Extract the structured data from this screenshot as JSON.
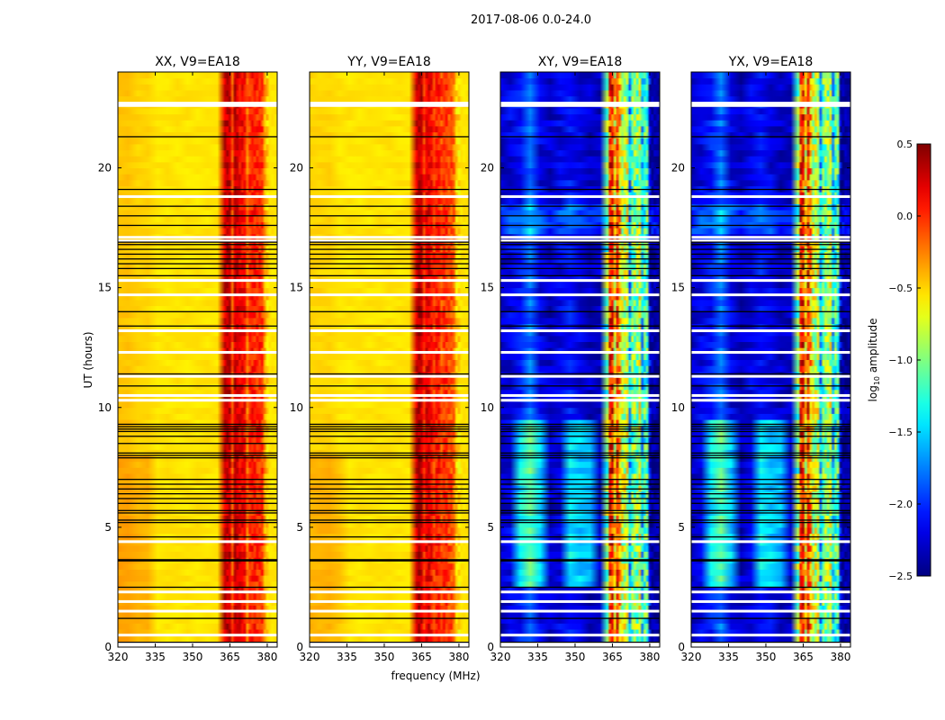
{
  "chart_data": {
    "type": "heatmap",
    "title": "2017-08-06 0.0-24.0",
    "ylabel": "UT (hours)",
    "xlabel": "frequency (MHz)",
    "xlim": [
      320,
      384
    ],
    "ylim": [
      0,
      24
    ],
    "xticks": [
      320,
      335,
      350,
      365,
      380
    ],
    "xtick_labels": [
      "320",
      "335",
      "350",
      "365",
      "380"
    ],
    "yticks": [
      0,
      5,
      10,
      15,
      20
    ],
    "ytick_labels": [
      "0",
      "5",
      "10",
      "15",
      "20"
    ],
    "colorbar": {
      "label": "log10 amplitude",
      "label_main": "log",
      "label_sub": "10",
      "label_rest": " amplitude",
      "colormap": "jet",
      "range": [
        -2.5,
        0.5
      ],
      "ticks": [
        0.5,
        0.0,
        -0.5,
        -1.0,
        -1.5,
        -2.0,
        -2.5
      ],
      "tick_labels": [
        "0.5",
        "0.0",
        "−0.5",
        "−1.0",
        "−1.5",
        "−2.0",
        "−2.5"
      ]
    },
    "freq_bins_mhz": [
      320,
      324,
      328,
      332,
      336,
      340,
      344,
      348,
      352,
      356,
      360,
      363,
      364,
      365,
      366,
      367,
      368,
      369,
      370,
      371,
      372,
      373,
      374,
      375,
      376,
      377,
      378,
      379,
      380,
      381,
      382,
      384
    ],
    "panels": [
      {
        "title": "XX, V9=EA18",
        "profile": [
          -0.45,
          -0.45,
          -0.5,
          -0.5,
          -0.55,
          -0.55,
          -0.55,
          -0.55,
          -0.55,
          -0.55,
          -0.55,
          0.25,
          0.3,
          0.3,
          -0.1,
          0.3,
          0.25,
          0.15,
          0.15,
          0.1,
          -0.2,
          0.0,
          0.05,
          0.05,
          0.0,
          0.0,
          -0.05,
          -0.35,
          -0.5,
          -0.55,
          -0.55,
          -0.55
        ]
      },
      {
        "title": "YY, V9=EA18",
        "profile": [
          -0.5,
          -0.5,
          -0.5,
          -0.55,
          -0.55,
          -0.55,
          -0.55,
          -0.55,
          -0.55,
          -0.55,
          -0.55,
          0.25,
          0.35,
          0.3,
          0.0,
          0.2,
          0.2,
          0.1,
          -0.05,
          0.05,
          0.05,
          -0.1,
          0.0,
          0.0,
          -0.1,
          -0.1,
          -0.2,
          -0.5,
          -0.55,
          -0.55,
          -0.55,
          -0.55
        ]
      },
      {
        "title": "XY, V9=EA18",
        "profile": [
          -2.3,
          -2.2,
          -2.1,
          -1.8,
          -2.2,
          -2.3,
          -2.2,
          -2.1,
          -2.2,
          -2.3,
          -2.3,
          -1.0,
          0.0,
          0.05,
          -0.6,
          0.0,
          -0.4,
          -0.8,
          -0.8,
          -0.8,
          -1.6,
          -1.1,
          -1.0,
          -1.0,
          -0.8,
          -1.5,
          -1.2,
          -1.2,
          -2.3,
          -2.4,
          -2.4,
          -2.4
        ]
      },
      {
        "title": "YX, V9=EA18",
        "profile": [
          -2.3,
          -2.2,
          -2.1,
          -1.8,
          -2.2,
          -2.3,
          -2.2,
          -2.1,
          -2.2,
          -2.3,
          -2.3,
          -1.0,
          0.0,
          0.05,
          -0.6,
          0.0,
          -0.4,
          -0.8,
          -0.8,
          -0.8,
          -1.6,
          -1.1,
          -1.0,
          -1.0,
          -0.8,
          -1.5,
          -1.2,
          -1.2,
          -2.3,
          -2.4,
          -2.4,
          -2.4
        ]
      }
    ],
    "flagged_black_hours": [
      0.2,
      1.2,
      2.5,
      3.6,
      3.65,
      4.6,
      5.2,
      5.3,
      5.6,
      5.7,
      6.0,
      6.2,
      6.4,
      6.6,
      6.8,
      7.0,
      7.9,
      8.0,
      8.1,
      8.5,
      8.8,
      9.0,
      9.1,
      9.2,
      9.3,
      10.9,
      11.4,
      13.4,
      14.0,
      15.5,
      15.8,
      16.0,
      16.2,
      16.4,
      16.6,
      16.8,
      16.9,
      17.6,
      18.0,
      18.4,
      19.1,
      21.3
    ],
    "flagged_white_hours": [
      0.5,
      1.5,
      1.9,
      2.3,
      4.4,
      10.3,
      10.5,
      11.3,
      12.3,
      13.2,
      14.7,
      15.3,
      16.95,
      17.1,
      18.8,
      22.6,
      22.7
    ],
    "time_variation_hours": [
      3.5,
      5.5,
      6.5,
      8.5,
      10.5,
      13.5,
      17.5,
      21.5
    ]
  }
}
